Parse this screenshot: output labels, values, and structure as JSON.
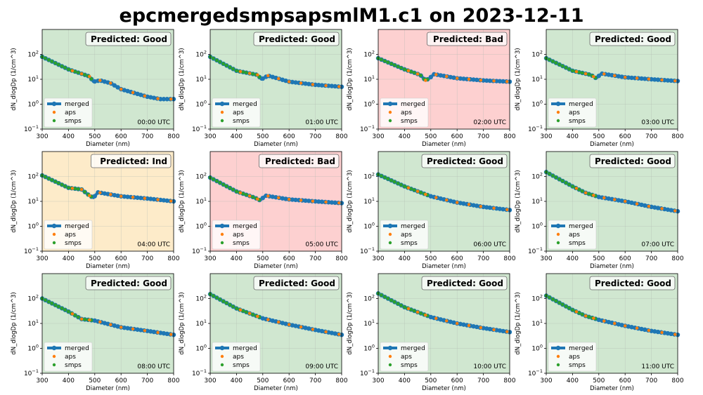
{
  "title": "epcmergedsmpsapsmlM1.c1 on 2023-12-11",
  "colors": {
    "merged": "#1f77b4",
    "aps": "#ff7f0e",
    "smps": "#2ca02c",
    "Good": "#d0e7d0",
    "Bad": "#fdd0d0",
    "Ind": "#fdebc9"
  },
  "chart_data": {
    "type": "line",
    "xlabel": "Diameter (nm)",
    "ylabel": "dN_dlogDp (1/cm^3)",
    "xlim": [
      300,
      800
    ],
    "ylim": [
      0.1,
      1000
    ],
    "yscale": "log",
    "xticks": [
      "300",
      "400",
      "500",
      "600",
      "700",
      "800"
    ],
    "yticks": [
      {
        "base": "10",
        "exp": "−1"
      },
      {
        "base": "10",
        "exp": "0"
      },
      {
        "base": "10",
        "exp": "1"
      },
      {
        "base": "10",
        "exp": "2"
      }
    ],
    "grid": true,
    "legend": {
      "placement": "lower-left",
      "entries": [
        "merged",
        "aps",
        "smps"
      ]
    },
    "aps_x": [
      415,
      450,
      480,
      520,
      560,
      600,
      645,
      690,
      740,
      790
    ],
    "smps_x": [
      300,
      312,
      325,
      337,
      350,
      362,
      375,
      387,
      400,
      412,
      425,
      437,
      450,
      462,
      475,
      487
    ],
    "panels": [
      {
        "time": "00:00 UTC",
        "prediction": "Predicted: Good",
        "class": "Good",
        "merged": [
          [
            300,
            80
          ],
          [
            400,
            25
          ],
          [
            480,
            13
          ],
          [
            495,
            8
          ],
          [
            520,
            9
          ],
          [
            560,
            7
          ],
          [
            600,
            4
          ],
          [
            700,
            2
          ],
          [
            750,
            1.6
          ],
          [
            800,
            1.6
          ]
        ]
      },
      {
        "time": "01:00 UTC",
        "prediction": "Predicted: Good",
        "class": "Good",
        "merged": [
          [
            300,
            80
          ],
          [
            400,
            22
          ],
          [
            480,
            15
          ],
          [
            495,
            10
          ],
          [
            520,
            14
          ],
          [
            600,
            8
          ],
          [
            700,
            6
          ],
          [
            800,
            5
          ]
        ]
      },
      {
        "time": "02:00 UTC",
        "prediction": "Predicted: Bad",
        "class": "Bad",
        "merged": [
          [
            300,
            70
          ],
          [
            400,
            25
          ],
          [
            460,
            15
          ],
          [
            480,
            9
          ],
          [
            495,
            11
          ],
          [
            512,
            16
          ],
          [
            600,
            11
          ],
          [
            700,
            9
          ],
          [
            800,
            8
          ]
        ]
      },
      {
        "time": "03:00 UTC",
        "prediction": "Predicted: Good",
        "class": "Good",
        "merged": [
          [
            300,
            70
          ],
          [
            400,
            22
          ],
          [
            470,
            15
          ],
          [
            490,
            11
          ],
          [
            510,
            17
          ],
          [
            600,
            12
          ],
          [
            700,
            10
          ],
          [
            800,
            8.5
          ]
        ]
      },
      {
        "time": "04:00 UTC",
        "prediction": "Predicted: Ind",
        "class": "Ind",
        "merged": [
          [
            300,
            110
          ],
          [
            400,
            35
          ],
          [
            450,
            30
          ],
          [
            480,
            17
          ],
          [
            495,
            14
          ],
          [
            512,
            23
          ],
          [
            600,
            16
          ],
          [
            700,
            13
          ],
          [
            800,
            10
          ]
        ]
      },
      {
        "time": "05:00 UTC",
        "prediction": "Predicted: Bad",
        "class": "Bad",
        "merged": [
          [
            300,
            90
          ],
          [
            400,
            25
          ],
          [
            470,
            14
          ],
          [
            490,
            11
          ],
          [
            510,
            17
          ],
          [
            600,
            12
          ],
          [
            700,
            10
          ],
          [
            800,
            8.5
          ]
        ]
      },
      {
        "time": "06:00 UTC",
        "prediction": "Predicted: Good",
        "class": "Good",
        "merged": [
          [
            300,
            120
          ],
          [
            400,
            40
          ],
          [
            500,
            16
          ],
          [
            600,
            9
          ],
          [
            700,
            6
          ],
          [
            800,
            4.5
          ]
        ]
      },
      {
        "time": "07:00 UTC",
        "prediction": "Predicted: Good",
        "class": "Good",
        "merged": [
          [
            300,
            150
          ],
          [
            400,
            40
          ],
          [
            450,
            22
          ],
          [
            500,
            15
          ],
          [
            600,
            10
          ],
          [
            700,
            6
          ],
          [
            800,
            4
          ]
        ]
      },
      {
        "time": "08:00 UTC",
        "prediction": "Predicted: Good",
        "class": "Good",
        "merged": [
          [
            300,
            100
          ],
          [
            400,
            30
          ],
          [
            450,
            15
          ],
          [
            500,
            13
          ],
          [
            600,
            7
          ],
          [
            700,
            5
          ],
          [
            800,
            3.5
          ]
        ]
      },
      {
        "time": "09:00 UTC",
        "prediction": "Predicted: Good",
        "class": "Good",
        "merged": [
          [
            300,
            150
          ],
          [
            400,
            40
          ],
          [
            500,
            16
          ],
          [
            600,
            9
          ],
          [
            700,
            5.5
          ],
          [
            800,
            3.5
          ]
        ]
      },
      {
        "time": "10:00 UTC",
        "prediction": "Predicted: Good",
        "class": "Good",
        "merged": [
          [
            300,
            160
          ],
          [
            400,
            45
          ],
          [
            500,
            18
          ],
          [
            600,
            10
          ],
          [
            700,
            6.5
          ],
          [
            800,
            4.5
          ]
        ]
      },
      {
        "time": "11:00 UTC",
        "prediction": "Predicted: Good",
        "class": "Good",
        "merged": [
          [
            300,
            130
          ],
          [
            400,
            35
          ],
          [
            450,
            20
          ],
          [
            500,
            14
          ],
          [
            600,
            8
          ],
          [
            700,
            5
          ],
          [
            800,
            3.5
          ]
        ]
      }
    ]
  }
}
